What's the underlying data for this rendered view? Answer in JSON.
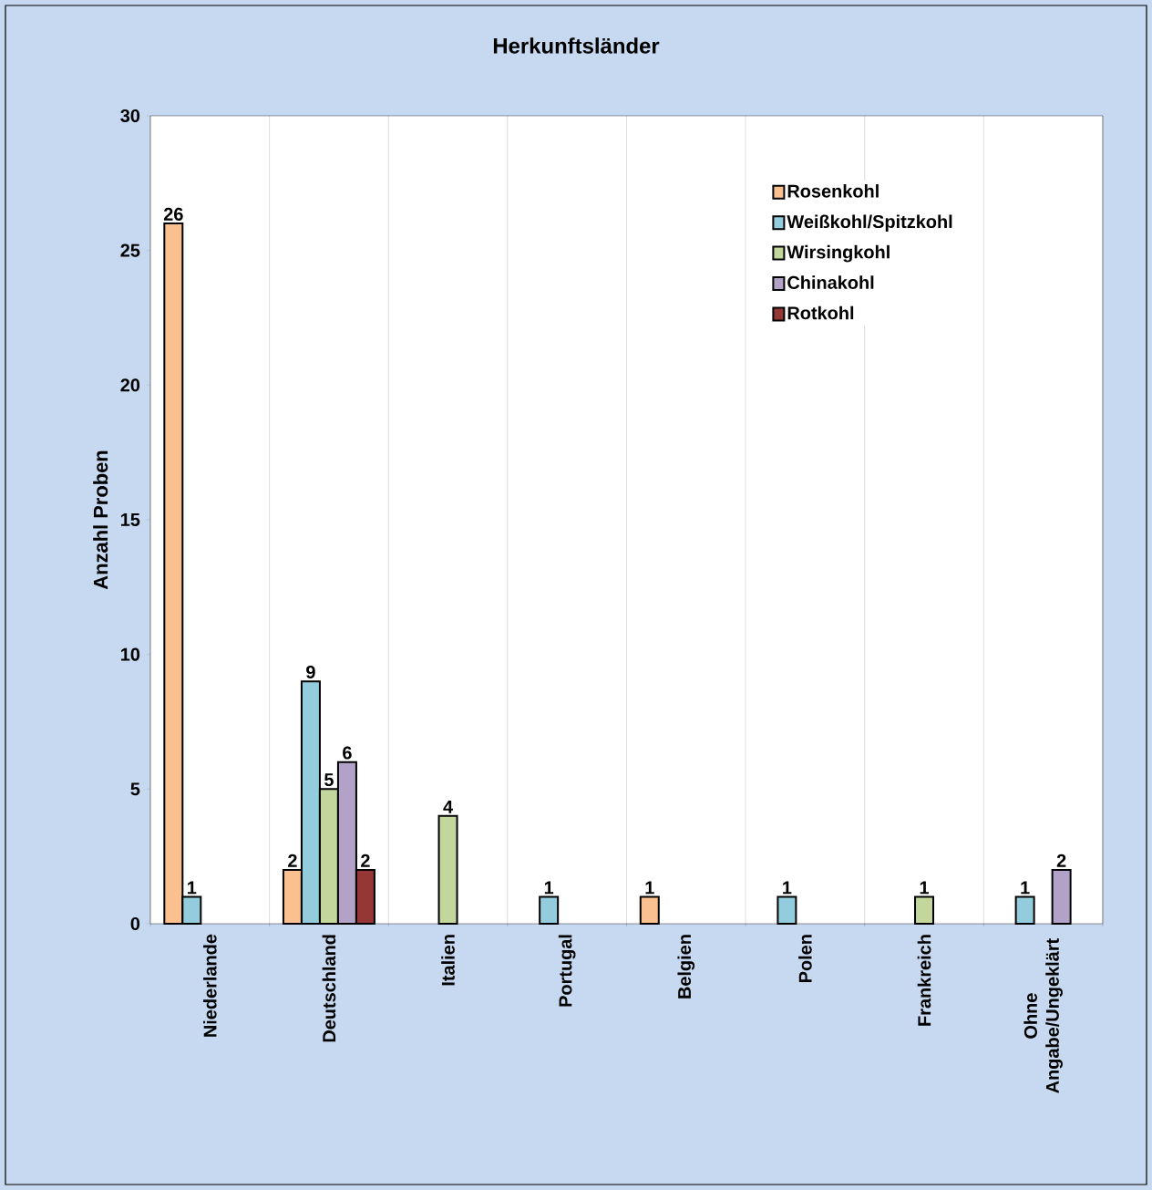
{
  "chart_data": {
    "type": "bar",
    "title": "Herkunftsländer",
    "ylabel": "Anzahl Proben",
    "categories": [
      "Niederlande",
      "Deutschland",
      "Italien",
      "Portugal",
      "Belgien",
      "Polen",
      "Frankreich",
      "Ohne Angabe/Ungeklärt"
    ],
    "series": [
      {
        "name": "Rosenkohl",
        "color": "#fac090",
        "values": [
          26,
          2,
          null,
          null,
          1,
          null,
          null,
          null
        ]
      },
      {
        "name": "Weißkohl/Spitzkohl",
        "color": "#93cddd",
        "values": [
          1,
          9,
          null,
          1,
          null,
          1,
          null,
          1
        ]
      },
      {
        "name": "Wirsingkohl",
        "color": "#c3d69b",
        "values": [
          null,
          5,
          4,
          null,
          null,
          null,
          1,
          null
        ]
      },
      {
        "name": "Chinakohl",
        "color": "#b3a2c7",
        "values": [
          null,
          6,
          null,
          null,
          null,
          null,
          null,
          2
        ]
      },
      {
        "name": "Rotkohl",
        "color": "#953735",
        "values": [
          null,
          2,
          null,
          null,
          null,
          null,
          null,
          null
        ]
      }
    ],
    "ylim": [
      0,
      30
    ],
    "yticks": [
      0,
      5,
      10,
      15,
      20,
      25,
      30
    ],
    "grid": "x",
    "legend": "top right",
    "data_labels": true
  }
}
